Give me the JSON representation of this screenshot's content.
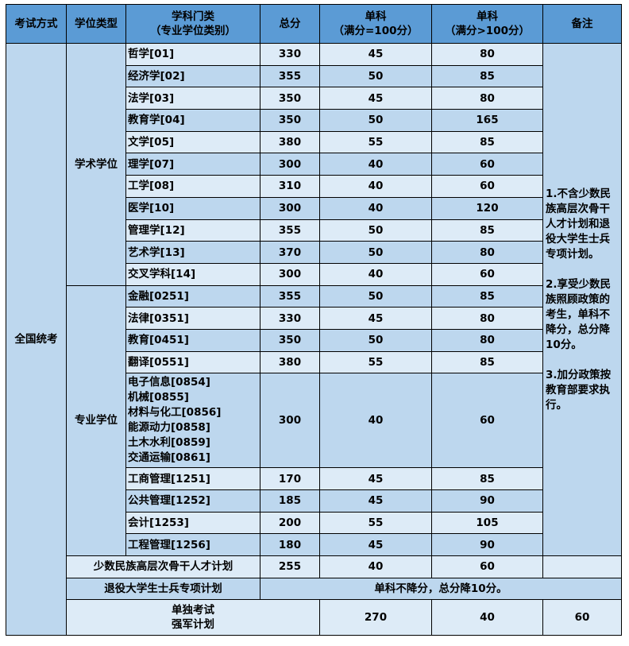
{
  "headers": {
    "exam_mode": "考试方式",
    "degree_type": "学位类型",
    "subject_line1": "学科门类",
    "subject_line2": "（专业学位类别）",
    "total": "总分",
    "single1_line1": "单科",
    "single1_line2": "（满分=100分）",
    "single2_line1": "单科",
    "single2_line2": "（满分>100分）",
    "remark": "备注"
  },
  "exam_mode_national": "全国统考",
  "degree_academic": "学术学位",
  "degree_professional": "专业学位",
  "academic_rows": [
    {
      "subject": "哲学[01]",
      "total": "330",
      "s1": "45",
      "s2": "80"
    },
    {
      "subject": "经济学[02]",
      "total": "355",
      "s1": "50",
      "s2": "85"
    },
    {
      "subject": "法学[03]",
      "total": "350",
      "s1": "45",
      "s2": "80"
    },
    {
      "subject": "教育学[04]",
      "total": "350",
      "s1": "50",
      "s2": "165"
    },
    {
      "subject": "文学[05]",
      "total": "380",
      "s1": "55",
      "s2": "85"
    },
    {
      "subject": "理学[07]",
      "total": "300",
      "s1": "40",
      "s2": "60"
    },
    {
      "subject": "工学[08]",
      "total": "310",
      "s1": "40",
      "s2": "60"
    },
    {
      "subject": "医学[10]",
      "total": "300",
      "s1": "40",
      "s2": "120"
    },
    {
      "subject": "管理学[12]",
      "total": "355",
      "s1": "50",
      "s2": "85"
    },
    {
      "subject": "艺术学[13]",
      "total": "370",
      "s1": "50",
      "s2": "80"
    },
    {
      "subject": "交叉学科[14]",
      "total": "300",
      "s1": "40",
      "s2": "60"
    }
  ],
  "professional_rows_a": [
    {
      "subject": "金融[0251]",
      "total": "355",
      "s1": "50",
      "s2": "85"
    },
    {
      "subject": "法律[0351]",
      "total": "330",
      "s1": "45",
      "s2": "80"
    },
    {
      "subject": "教育[0451]",
      "total": "350",
      "s1": "50",
      "s2": "80"
    },
    {
      "subject": "翻译[0551]",
      "total": "380",
      "s1": "55",
      "s2": "85"
    }
  ],
  "engineering_group": {
    "subjects": [
      "电子信息[0854]",
      "机械[0855]",
      "材料与化工[0856]",
      "能源动力[0858]",
      "土木水利[0859]",
      "交通运输[0861]"
    ],
    "total": "300",
    "s1": "40",
    "s2": "60"
  },
  "professional_rows_b": [
    {
      "subject": "工商管理[1251]",
      "total": "170",
      "s1": "45",
      "s2": "85"
    },
    {
      "subject": "公共管理[1252]",
      "total": "185",
      "s1": "45",
      "s2": "90"
    },
    {
      "subject": "会计[1253]",
      "total": "200",
      "s1": "55",
      "s2": "105"
    },
    {
      "subject": "工程管理[1256]",
      "total": "180",
      "s1": "45",
      "s2": "90"
    }
  ],
  "remarks": [
    "1.不含少数民族高层次骨干人才计划和退役大学生士兵专项计划。",
    "2.享受少数民族照顾政策的考生，单科不降分，总分降10分。",
    "3.加分政策按教育部要求执行。"
  ],
  "minority_plan": {
    "label": "少数民族高层次骨干人才计划",
    "total": "255",
    "s1": "40",
    "s2": "60"
  },
  "veteran_plan": {
    "label": "退役大学生士兵专项计划",
    "note": "单科不降分，总分降10分。"
  },
  "separate_exam": {
    "line1": "单独考试",
    "line2": "强军计划",
    "total": "270",
    "s1": "40",
    "s2": "60"
  },
  "colors": {
    "header": "#5b9bd5",
    "row_light": "#ddebf7",
    "row_dark": "#bdd7ee",
    "border": "#000000"
  }
}
